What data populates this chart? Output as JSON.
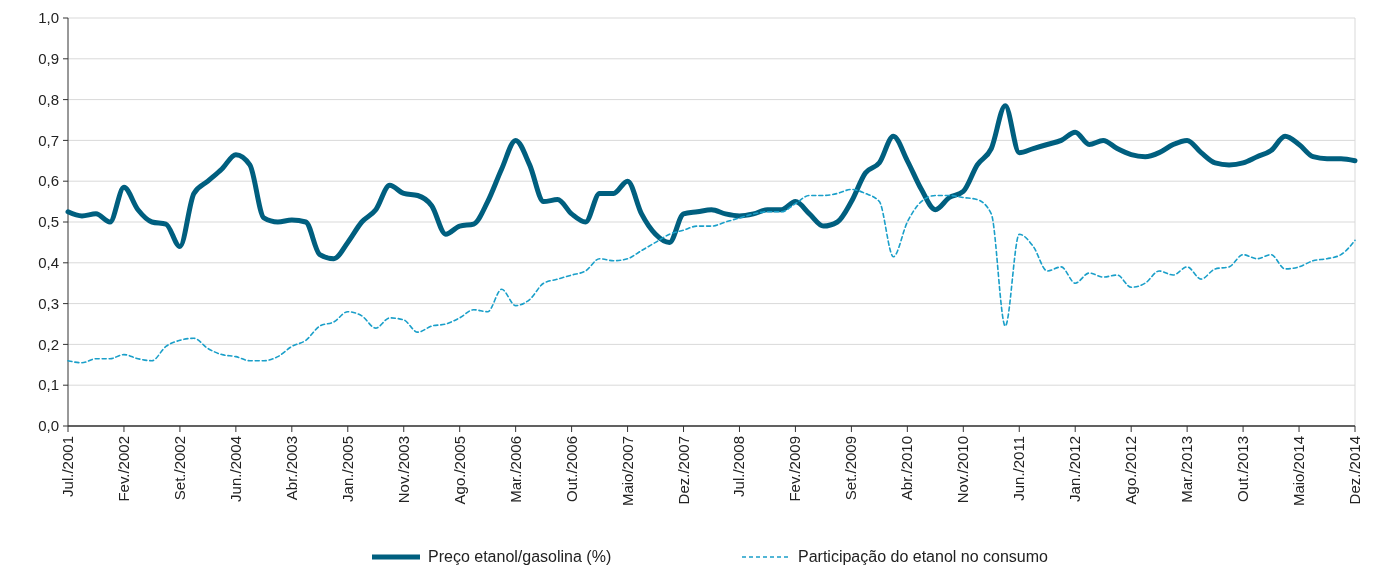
{
  "chart_data": {
    "type": "line",
    "categories": [
      "Jul./2001",
      null,
      null,
      null,
      "Fev./2002",
      null,
      null,
      null,
      "Set./2002",
      null,
      null,
      null,
      "Jun./2004",
      null,
      null,
      null,
      "Abr./2003",
      null,
      null,
      null,
      "Jan./2005",
      null,
      null,
      null,
      "Nov./2003",
      null,
      null,
      null,
      "Ago./2005",
      null,
      null,
      null,
      "Mar./2006",
      null,
      null,
      null,
      "Out./2006",
      null,
      null,
      null,
      "Maio/2007",
      null,
      null,
      null,
      "Dez./2007",
      null,
      null,
      null,
      "Jul./2008",
      null,
      null,
      null,
      "Fev./2009",
      null,
      null,
      null,
      "Set./2009",
      null,
      null,
      null,
      "Abr./2010",
      null,
      null,
      null,
      "Nov./2010",
      null,
      null,
      null,
      "Jun./2011",
      null,
      null,
      null,
      "Jan./2012",
      null,
      null,
      null,
      "Ago./2012",
      null,
      null,
      null,
      "Mar./2013",
      null,
      null,
      null,
      "Out./2013",
      null,
      null,
      null,
      "Maio/2014",
      null,
      null,
      null,
      "Dez./2014"
    ],
    "series": [
      {
        "name": "Preço etanol/gasolina (%)",
        "color": "#005f7f",
        "line_style": "solid",
        "values": [
          0.525,
          0.515,
          0.52,
          0.5,
          0.585,
          0.53,
          0.5,
          0.495,
          0.44,
          0.57,
          0.6,
          0.63,
          0.665,
          0.64,
          0.51,
          0.5,
          0.505,
          0.5,
          0.42,
          0.41,
          0.45,
          0.5,
          0.53,
          0.59,
          0.57,
          0.565,
          0.54,
          0.47,
          0.49,
          0.495,
          0.55,
          0.63,
          0.7,
          0.64,
          0.55,
          0.555,
          0.52,
          0.5,
          0.57,
          0.57,
          0.6,
          0.52,
          0.47,
          0.45,
          0.52,
          0.525,
          0.53,
          0.52,
          0.515,
          0.52,
          0.53,
          0.53,
          0.55,
          0.52,
          0.49,
          0.5,
          0.55,
          0.62,
          0.645,
          0.71,
          0.65,
          0.58,
          0.53,
          0.56,
          0.575,
          0.64,
          0.68,
          0.785,
          0.67,
          0.68,
          0.69,
          0.7,
          0.72,
          0.69,
          0.7,
          0.68,
          0.665,
          0.66,
          0.67,
          0.69,
          0.7,
          0.67,
          0.645,
          0.64,
          0.645,
          0.66,
          0.675,
          0.71,
          0.69,
          0.66,
          0.655,
          0.655,
          0.65
        ]
      },
      {
        "name": "Participação do etanol no consumo",
        "color": "#1a9fc9",
        "line_style": "dashed",
        "values": [
          0.16,
          0.155,
          0.165,
          0.165,
          0.175,
          0.165,
          0.16,
          0.195,
          0.21,
          0.215,
          0.19,
          0.175,
          0.17,
          0.16,
          0.16,
          0.17,
          0.195,
          0.21,
          0.245,
          0.255,
          0.28,
          0.27,
          0.24,
          0.265,
          0.26,
          0.23,
          0.245,
          0.25,
          0.265,
          0.285,
          0.28,
          0.335,
          0.295,
          0.31,
          0.35,
          0.36,
          0.37,
          0.38,
          0.41,
          0.405,
          0.41,
          0.43,
          0.45,
          0.47,
          0.48,
          0.49,
          0.49,
          0.5,
          0.51,
          0.52,
          0.525,
          0.525,
          0.545,
          0.565,
          0.565,
          0.57,
          0.58,
          0.57,
          0.55,
          0.415,
          0.5,
          0.55,
          0.565,
          0.565,
          0.56,
          0.555,
          0.52,
          0.245,
          0.47,
          0.44,
          0.38,
          0.39,
          0.35,
          0.375,
          0.365,
          0.37,
          0.34,
          0.35,
          0.38,
          0.37,
          0.39,
          0.36,
          0.385,
          0.39,
          0.42,
          0.41,
          0.42,
          0.385,
          0.39,
          0.405,
          0.41,
          0.42,
          0.455
        ]
      }
    ],
    "ylim": [
      0,
      1
    ],
    "yticks": [
      {
        "value": 0,
        "label": "0,0"
      },
      {
        "value": 0.1,
        "label": "0,1"
      },
      {
        "value": 0.2,
        "label": "0,2"
      },
      {
        "value": 0.3,
        "label": "0,3"
      },
      {
        "value": 0.4,
        "label": "0,4"
      },
      {
        "value": 0.5,
        "label": "0,5"
      },
      {
        "value": 0.6,
        "label": "0,6"
      },
      {
        "value": 0.7,
        "label": "0,7"
      },
      {
        "value": 0.8,
        "label": "0,8"
      },
      {
        "value": 0.9,
        "label": "0,9"
      },
      {
        "value": 1,
        "label": "1,0"
      }
    ],
    "grid": "y",
    "legend": "bottom",
    "marker": "none"
  }
}
